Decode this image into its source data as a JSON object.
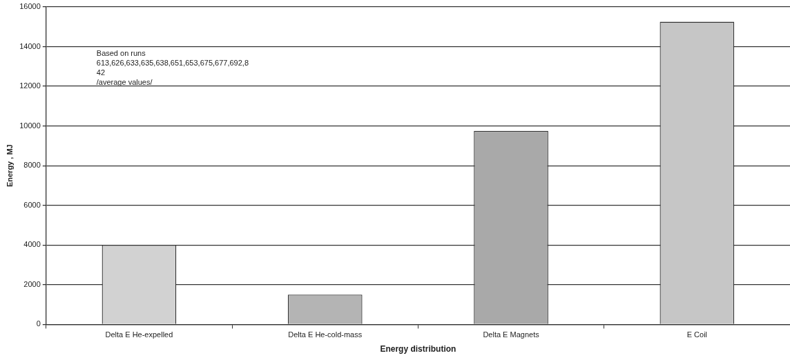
{
  "chart_data": {
    "type": "bar",
    "xlabel": "Energy distribution",
    "ylabel": "Energy , MJ",
    "categories": [
      "Delta E He-expelled",
      "Delta E He-cold-mass",
      "Delta E Magnets",
      "E Coil"
    ],
    "values": [
      4000,
      1500,
      9750,
      15250
    ],
    "colors": [
      "#d2d2d2",
      "#b4b4b4",
      "#a9a9a9",
      "#c6c6c6"
    ],
    "ylim": [
      0,
      16000
    ],
    "yticks": [
      0,
      2000,
      4000,
      6000,
      8000,
      10000,
      12000,
      14000,
      16000
    ],
    "grid": "y",
    "legend": false,
    "annotations": [
      "Based on runs\n613,626,633,635,638,651,653,675,677,692,8\n42\n/average values/"
    ]
  }
}
